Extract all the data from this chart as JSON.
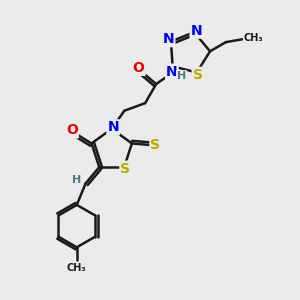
{
  "bg_color": "#ebebeb",
  "bond_color": "#1a1a1a",
  "atom_colors": {
    "N": "#0000ee",
    "O": "#ee0000",
    "S": "#bbaa00",
    "H": "#507878",
    "C": "#1a1a1a"
  },
  "bond_width": 1.8,
  "font_size_atom": 10,
  "font_size_small": 8,
  "font_size_methyl": 7
}
